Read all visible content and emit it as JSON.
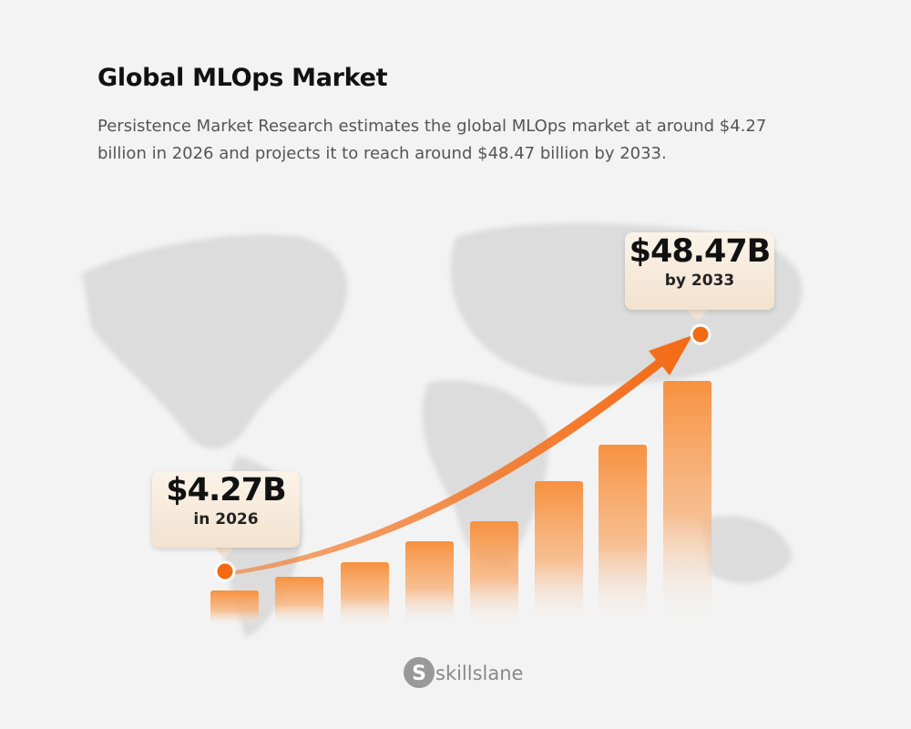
{
  "header": {
    "title": "Global MLOps Market",
    "description": "Persistence Market Research estimates the global MLOps market at around $4.27 billion in 2026 and projects it to reach around $48.47 billion by 2033."
  },
  "callouts": [
    {
      "value": "$4.27B",
      "label": "in 2026"
    },
    {
      "value": "$48.47B",
      "label": "by 2033"
    }
  ],
  "footer": {
    "brand": "skillslane"
  }
}
